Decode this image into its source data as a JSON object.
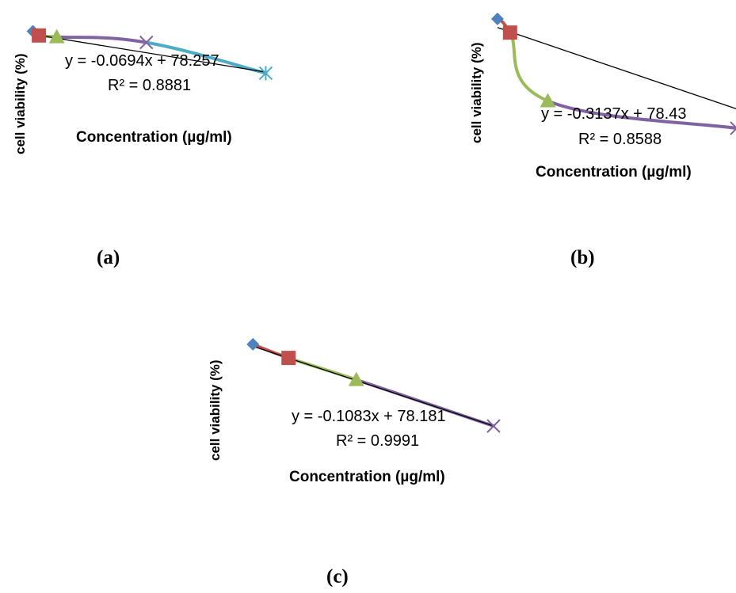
{
  "chart_data": [
    {
      "type": "line",
      "panel": "(a)",
      "ylabel": "cell viability (%)",
      "xlabel": "Concentration (µg/ml)",
      "x": [
        5,
        10,
        25,
        100,
        200
      ],
      "series": [
        {
          "marker": "diamond",
          "color": "#4f81bd",
          "values": [
            79,
            77.5,
            77,
            75,
            64
          ]
        }
      ],
      "segment_colors": [
        "#c0504d",
        "#9bbb59",
        "#8064a2",
        "#4bacc6"
      ],
      "markers": [
        {
          "shape": "diamond",
          "color": "#4f81bd"
        },
        {
          "shape": "square",
          "color": "#c0504d"
        },
        {
          "shape": "triangle",
          "color": "#9bbb59"
        },
        {
          "shape": "x",
          "color": "#8064a2"
        },
        {
          "shape": "star",
          "color": "#4bacc6"
        }
      ],
      "trendline": {
        "slope": -0.0694,
        "intercept": 78.257,
        "equation": "y = -0.0694x + 78.257",
        "r2": "R² = 0.8881"
      },
      "xlim": [
        0,
        205
      ],
      "ylim": [
        61,
        80
      ]
    },
    {
      "type": "line",
      "panel": "(b)",
      "ylabel": "cell viability (%)",
      "xlabel": "Concentration  (µg/ml)",
      "x": [
        5,
        10,
        25,
        100
      ],
      "series": [
        {
          "marker": "diamond",
          "color": "#4f81bd",
          "values": [
            80,
            75,
            50,
            40
          ]
        }
      ],
      "segment_colors": [
        "#c0504d",
        "#9bbb59",
        "#8064a2"
      ],
      "markers": [
        {
          "shape": "diamond",
          "color": "#4f81bd"
        },
        {
          "shape": "square",
          "color": "#c0504d"
        },
        {
          "shape": "triangle",
          "color": "#9bbb59"
        },
        {
          "shape": "x",
          "color": "#8064a2"
        }
      ],
      "trendline": {
        "slope": -0.3137,
        "intercept": 78.43,
        "equation": "y = -0.3137x + 78.43",
        "r2": "R² = 0.8588"
      },
      "xlim": [
        0,
        100
      ],
      "ylim": [
        40,
        82
      ]
    },
    {
      "type": "line",
      "panel": "(c)",
      "ylabel": "cell viability (%)",
      "xlabel": "Concentration (µg/ml)",
      "x": [
        5,
        25,
        63,
        140
      ],
      "series": [
        {
          "marker": "diamond",
          "color": "#4f81bd",
          "values": [
            78,
            75.5,
            71.5,
            63
          ]
        }
      ],
      "segment_colors": [
        "#c0504d",
        "#9bbb59",
        "#8064a2"
      ],
      "markers": [
        {
          "shape": "diamond",
          "color": "#4f81bd"
        },
        {
          "shape": "square",
          "color": "#c0504d"
        },
        {
          "shape": "triangle",
          "color": "#9bbb59"
        },
        {
          "shape": "x",
          "color": "#8064a2"
        }
      ],
      "trendline": {
        "slope": -0.1083,
        "intercept": 78.181,
        "equation": "y = -0.1083x + 78.181",
        "r2": "R² = 0.9991"
      },
      "xlim": [
        0,
        140
      ],
      "ylim": [
        62,
        79
      ]
    }
  ]
}
